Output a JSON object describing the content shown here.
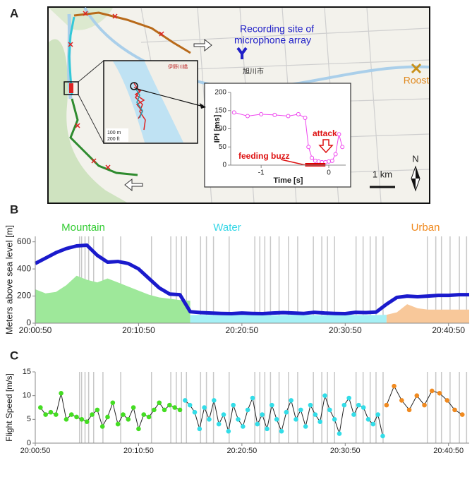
{
  "panel_labels": [
    "A",
    "B",
    "C"
  ],
  "map": {
    "recording_site": [
      "Recording site of",
      "microphone array"
    ],
    "roost": "Roost",
    "scale": "1 km",
    "north": "N",
    "city": "旭川市",
    "inset_scale": [
      "100 m",
      "200 ft"
    ],
    "inset_place": "伊野川橋"
  },
  "chart_data": [
    {
      "type": "line",
      "xlabel": "Time [s]",
      "ylabel": "IPI [ms]",
      "xlim": [
        -1.45,
        0.25
      ],
      "ylim": [
        0,
        200
      ],
      "xticks": [
        -1,
        0
      ],
      "yticks": [
        0,
        50,
        100,
        150,
        200
      ],
      "series": [
        {
          "color": "#ee44ee",
          "marker": "open",
          "x": [
            -1.4,
            -1.2,
            -1.0,
            -0.8,
            -0.6,
            -0.45,
            -0.35,
            -0.3,
            -0.25,
            -0.2,
            -0.15,
            -0.1,
            -0.05,
            0.0,
            0.05,
            0.1,
            0.15,
            0.2
          ],
          "values": [
            145,
            135,
            140,
            138,
            135,
            140,
            130,
            50,
            20,
            12,
            10,
            8,
            8,
            10,
            12,
            30,
            85,
            50
          ]
        }
      ],
      "span": {
        "x": [
          -0.35,
          -0.05
        ],
        "color": "#dd0000"
      },
      "annotations": [
        {
          "text": "feeding buzz",
          "color": "#dd1111"
        },
        {
          "text": "attack",
          "color": "#dd1111"
        }
      ]
    },
    {
      "type": "area",
      "ylabel": "Meters above sea level [m]",
      "xlim": [
        72050,
        74570
      ],
      "ylim": [
        0,
        640
      ],
      "xticks": [
        {
          "value": 72050,
          "label": "20:00:50"
        },
        {
          "value": 72650,
          "label": "20:10:50"
        },
        {
          "value": 73250,
          "label": "20:20:50"
        },
        {
          "value": 73850,
          "label": "20:30:50"
        },
        {
          "value": 74450,
          "label": "20:40:50"
        }
      ],
      "yticks": [
        0,
        200,
        400,
        600
      ],
      "vline_color": "#c8c8c8",
      "vlines": [
        72307,
        72319,
        72339,
        72360,
        72389,
        72443,
        72546,
        72725,
        72837,
        72869,
        72899,
        72928,
        73010,
        73044,
        73085,
        73176,
        73325,
        73354,
        73383,
        73416,
        73466,
        73520,
        73574,
        73665,
        73714,
        73747,
        73788,
        73913,
        73954,
        73995,
        74029,
        74070,
        74327,
        74376,
        74409,
        74459,
        74513,
        74555
      ],
      "series": [
        {
          "name": "Mountain",
          "kind": "area",
          "color": "#9ee89a",
          "label_color": "#33cc33",
          "x": [
            72050,
            72110,
            72170,
            72230,
            72290,
            72350,
            72410,
            72470,
            72530,
            72590,
            72650,
            72710,
            72770,
            72830,
            72890,
            72950
          ],
          "values": [
            250,
            220,
            230,
            280,
            350,
            320,
            300,
            330,
            300,
            270,
            240,
            210,
            190,
            180,
            170,
            165
          ]
        },
        {
          "name": "Water",
          "kind": "area",
          "color": "#a6f0f5",
          "label_color": "#33d6e6",
          "x": [
            72950,
            73010,
            73070,
            73130,
            73190,
            73250,
            73310,
            73370,
            73430,
            73490,
            73550,
            73610,
            73670,
            73730,
            73790,
            73850,
            73910,
            73970,
            74030,
            74090
          ],
          "values": [
            60,
            62,
            60,
            58,
            60,
            62,
            60,
            60,
            58,
            60,
            62,
            60,
            60,
            58,
            60,
            62,
            60,
            60,
            60,
            62
          ]
        },
        {
          "name": "Urban",
          "kind": "area",
          "color": "#f8c89a",
          "label_color": "#f08a20",
          "x": [
            74090,
            74150,
            74210,
            74270,
            74330,
            74390,
            74450,
            74510,
            74570
          ],
          "values": [
            62,
            80,
            140,
            110,
            100,
            100,
            100,
            100,
            100
          ]
        },
        {
          "kind": "line",
          "color": "#1a1acc",
          "x": [
            72050,
            72110,
            72170,
            72230,
            72290,
            72350,
            72410,
            72470,
            72530,
            72590,
            72650,
            72710,
            72770,
            72830,
            72890,
            72950,
            73010,
            73070,
            73130,
            73190,
            73250,
            73310,
            73370,
            73430,
            73490,
            73550,
            73610,
            73670,
            73730,
            73790,
            73850,
            73910,
            73970,
            74030,
            74090,
            74150,
            74210,
            74270,
            74330,
            74390,
            74450,
            74510,
            74570
          ],
          "values": [
            440,
            480,
            520,
            550,
            570,
            575,
            500,
            450,
            455,
            440,
            400,
            330,
            260,
            215,
            210,
            85,
            78,
            75,
            72,
            70,
            75,
            72,
            70,
            75,
            78,
            75,
            72,
            80,
            75,
            72,
            70,
            80,
            78,
            82,
            140,
            190,
            200,
            195,
            200,
            205,
            205,
            210,
            210
          ]
        }
      ]
    },
    {
      "type": "line",
      "ylabel": "Flight Speed [m/s]",
      "xlim": [
        72050,
        74570
      ],
      "ylim": [
        0,
        15
      ],
      "xticks": [
        {
          "value": 72050,
          "label": "20:00:50"
        },
        {
          "value": 72650,
          "label": "20:10:50"
        },
        {
          "value": 73250,
          "label": "20:20:50"
        },
        {
          "value": 73850,
          "label": "20:30:50"
        },
        {
          "value": 74450,
          "label": "20:40:50"
        }
      ],
      "yticks": [
        0,
        5,
        10,
        15
      ],
      "vline_color": "#c8c8c8",
      "line_color": "#222222",
      "vlines": [
        72307,
        72319,
        72339,
        72360,
        72389,
        72443,
        72546,
        72725,
        72837,
        72869,
        72899,
        72928,
        73010,
        73044,
        73085,
        73176,
        73325,
        73354,
        73383,
        73416,
        73466,
        73520,
        73574,
        73665,
        73714,
        73747,
        73788,
        73913,
        73954,
        73995,
        74029,
        74070,
        74327,
        74376,
        74409,
        74459,
        74513,
        74555
      ],
      "series": [
        {
          "color": "#44dd22",
          "marker": "filled",
          "x": [
            72080,
            72110,
            72140,
            72170,
            72200,
            72230,
            72260,
            72290,
            72320,
            72350,
            72380,
            72410,
            72440,
            72470,
            72500,
            72530,
            72560,
            72590,
            72620,
            72650,
            72680,
            72710,
            72740,
            72770,
            72800,
            72830,
            72860,
            72890
          ],
          "values": [
            7.5,
            6,
            6.5,
            6,
            10.5,
            5,
            6,
            5.5,
            5,
            4.5,
            6,
            7,
            3.5,
            5.5,
            8.5,
            4,
            6,
            5,
            7.5,
            3,
            6,
            5.5,
            7,
            8.5,
            7,
            8,
            7.5,
            7
          ]
        },
        {
          "color": "#33dde8",
          "marker": "filled",
          "x": [
            72920,
            72948,
            72976,
            73004,
            73032,
            73060,
            73088,
            73116,
            73144,
            73172,
            73200,
            73228,
            73256,
            73284,
            73312,
            73340,
            73368,
            73396,
            73424,
            73452,
            73480,
            73508,
            73536,
            73564,
            73592,
            73620,
            73648,
            73676,
            73704,
            73732,
            73760,
            73788,
            73816,
            73844,
            73872,
            73900,
            73928,
            73956,
            73984,
            74012,
            74040,
            74068
          ],
          "values": [
            9,
            8,
            6.5,
            3,
            7.5,
            5,
            9,
            4,
            6,
            2.5,
            8,
            5,
            3.5,
            7,
            9.5,
            4,
            6,
            3,
            8,
            5,
            2.5,
            6.5,
            9,
            5,
            7,
            3.5,
            8,
            6,
            4.5,
            10,
            7,
            5,
            2,
            8,
            9.5,
            6,
            8,
            7.5,
            5,
            4,
            6,
            1.5
          ]
        },
        {
          "color": "#f08a20",
          "marker": "filled",
          "x": [
            74090,
            74134,
            74178,
            74222,
            74266,
            74310,
            74354,
            74398,
            74442,
            74486,
            74530
          ],
          "values": [
            8,
            12,
            9,
            7,
            10,
            8,
            11,
            10.5,
            9,
            7,
            6
          ]
        }
      ]
    }
  ]
}
